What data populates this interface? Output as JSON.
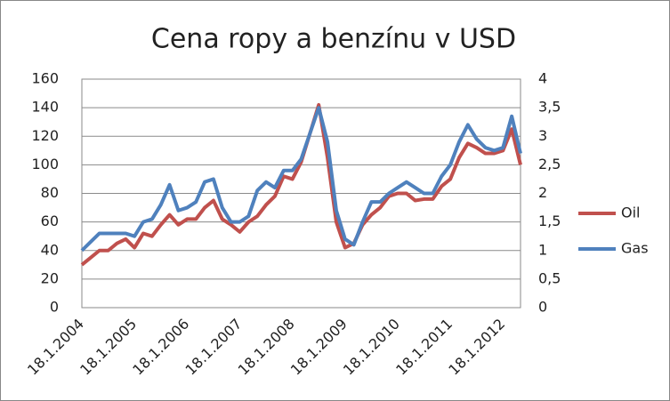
{
  "chart_data": {
    "type": "line",
    "title": "Cena ropy a benzínu v USD",
    "categories": [
      "18.1.2004",
      null,
      null,
      null,
      null,
      null,
      "18.1.2005",
      null,
      null,
      null,
      null,
      null,
      "18.1.2006",
      null,
      null,
      null,
      null,
      null,
      "18.1.2007",
      null,
      null,
      null,
      null,
      null,
      "18.1.2008",
      null,
      null,
      null,
      null,
      null,
      "18.1.2009",
      null,
      null,
      null,
      null,
      null,
      "18.1.2010",
      null,
      null,
      null,
      null,
      null,
      "18.1.2011",
      null,
      null,
      null,
      null,
      null,
      "18.1.2012",
      null,
      null
    ],
    "series": [
      {
        "name": "Oil",
        "color": "#c0504d",
        "values": [
          30,
          35,
          40,
          40,
          45,
          48,
          42,
          52,
          50,
          58,
          65,
          58,
          62,
          62,
          70,
          75,
          62,
          58,
          53,
          60,
          64,
          72,
          78,
          92,
          90,
          102,
          122,
          142,
          105,
          60,
          42,
          45,
          58,
          65,
          70,
          78,
          80,
          80,
          75,
          76,
          76,
          85,
          90,
          105,
          115,
          112,
          108,
          108,
          110,
          125,
          100
        ]
      },
      {
        "name": "Gas",
        "color": "#4f81bd",
        "axis": "y2",
        "values": [
          1.0,
          1.15,
          1.3,
          1.3,
          1.3,
          1.3,
          1.25,
          1.5,
          1.55,
          1.8,
          2.15,
          1.7,
          1.75,
          1.85,
          2.2,
          2.25,
          1.75,
          1.5,
          1.5,
          1.6,
          2.05,
          2.2,
          2.1,
          2.4,
          2.4,
          2.6,
          3.05,
          3.5,
          2.9,
          1.7,
          1.2,
          1.1,
          1.5,
          1.85,
          1.85,
          2.0,
          2.1,
          2.2,
          2.1,
          2.0,
          2.0,
          2.3,
          2.5,
          2.9,
          3.2,
          2.95,
          2.8,
          2.75,
          2.8,
          3.35,
          2.7
        ]
      }
    ],
    "ylim": [
      0,
      160
    ],
    "yticks": [
      0,
      20,
      40,
      60,
      80,
      100,
      120,
      140,
      160
    ],
    "y2lim": [
      0,
      4
    ],
    "y2ticks": [
      0,
      {
        "value": 0.5,
        "label": "0,5"
      },
      1,
      {
        "value": 1.5,
        "label": "1,5"
      },
      2,
      {
        "value": 2.5,
        "label": "2,5"
      },
      3,
      {
        "value": 3.5,
        "label": "3,5"
      },
      4
    ],
    "grid": true,
    "legend": "right"
  }
}
